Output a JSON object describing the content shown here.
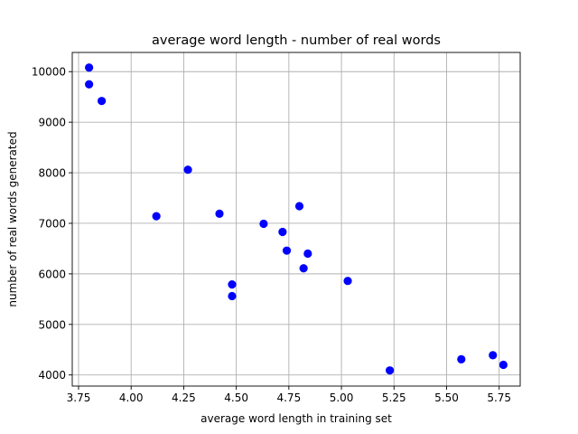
{
  "chart_data": {
    "type": "scatter",
    "title": "average word length - number of real words",
    "xlabel": "average word length in training set",
    "ylabel": "number of real words generated",
    "xlim": [
      3.72,
      5.85
    ],
    "ylim": [
      3780,
      10380
    ],
    "xticks": [
      "3.75",
      "4.00",
      "4.25",
      "4.50",
      "4.75",
      "5.00",
      "5.25",
      "5.50",
      "5.75"
    ],
    "yticks": [
      "4000",
      "5000",
      "6000",
      "7000",
      "8000",
      "9000",
      "10000"
    ],
    "grid": true,
    "marker_color": "#0000ff",
    "x": [
      3.8,
      3.8,
      3.86,
      4.12,
      4.27,
      4.42,
      4.48,
      4.48,
      4.63,
      4.72,
      4.74,
      4.8,
      4.82,
      4.84,
      5.03,
      5.23,
      5.57,
      5.72,
      5.77
    ],
    "y": [
      10080,
      9750,
      9420,
      7140,
      8060,
      7190,
      5790,
      5560,
      6990,
      6830,
      6460,
      7340,
      6110,
      6400,
      5860,
      4090,
      4310,
      4390,
      4200
    ]
  }
}
